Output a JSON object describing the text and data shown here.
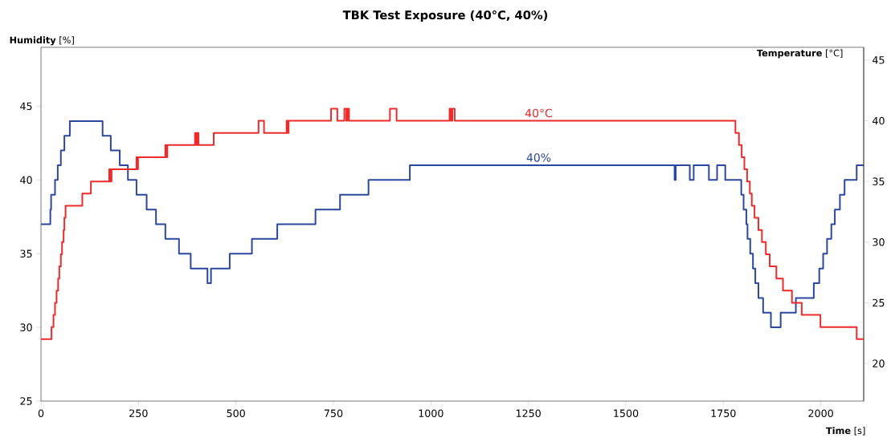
{
  "chart_data": {
    "type": "step",
    "title": "TBK Test Exposure (40°C, 40%)",
    "xlabel": "**Time** [s]",
    "ylabel": "**Humidity** [%]",
    "y2label": "**Temperature** [°C]",
    "xlim": [
      0,
      2110
    ],
    "xticks": [
      0,
      250,
      500,
      750,
      1000,
      1250,
      1500,
      1750,
      2000
    ],
    "ylim": [
      25,
      49
    ],
    "yticks": [
      25,
      30,
      35,
      40,
      45
    ],
    "y2lim": [
      16.9,
      46.05
    ],
    "y2ticks": [
      20,
      25,
      30,
      35,
      40,
      45
    ],
    "series": [
      {
        "name": "40°C",
        "color": "#ee2a2a",
        "axis": "y2",
        "x": [
          0,
          27,
          32,
          36,
          40,
          44,
          47,
          51,
          54,
          58,
          60,
          63,
          106,
          128,
          175,
          178,
          181,
          245,
          247,
          249,
          319,
          321,
          324,
          395,
          398,
          401,
          404,
          443,
          558,
          572,
          630,
          632,
          635,
          744,
          760,
          778,
          783,
          786,
          790,
          895,
          912,
          1048,
          1052,
          1055,
          1061,
          1781,
          1790,
          1797,
          1804,
          1811,
          1818,
          1823,
          1830,
          1840,
          1849,
          1859,
          1869,
          1886,
          1903,
          1926,
          1951,
          1999,
          2092,
          2110
        ],
        "values": [
          22,
          23,
          24,
          25,
          26,
          27,
          28,
          29,
          30,
          31,
          32,
          33,
          34,
          35,
          36,
          35,
          36,
          37,
          36,
          37,
          38,
          37,
          38,
          39,
          38,
          39,
          38,
          39,
          40,
          39,
          40,
          39,
          40,
          41,
          40,
          41,
          40,
          41,
          40,
          41,
          40,
          41,
          40,
          41,
          40,
          39,
          38,
          37,
          36,
          35,
          34,
          33,
          32,
          31,
          30,
          29,
          28,
          27,
          26,
          25,
          24,
          23,
          22,
          22
        ]
      },
      {
        "name": "40%",
        "color": "#2b47a0",
        "x": [
          0,
          24,
          26,
          36,
          43,
          51,
          60,
          74,
          158,
          179,
          202,
          223,
          245,
          271,
          295,
          319,
          354,
          384,
          427,
          436,
          484,
          541,
          606,
          704,
          767,
          840,
          946,
          1625,
          1628,
          1664,
          1674,
          1713,
          1734,
          1755,
          1796,
          1802,
          1809,
          1812,
          1819,
          1826,
          1832,
          1840,
          1852,
          1872,
          1897,
          1936,
          1982,
          1996,
          2006,
          2016,
          2027,
          2036,
          2049,
          2061,
          2092,
          2110
        ],
        "values": [
          37,
          38,
          39,
          40,
          41,
          42,
          43,
          44,
          43,
          42,
          41,
          40,
          39,
          38,
          37,
          36,
          35,
          34,
          33,
          34,
          35,
          36,
          37,
          38,
          39,
          40,
          41,
          40,
          41,
          40,
          41,
          40,
          41,
          40,
          39,
          38,
          37,
          36,
          35,
          34,
          33,
          32,
          31,
          30,
          31,
          32,
          33,
          34,
          35,
          36,
          37,
          38,
          39,
          40,
          41,
          41
        ]
      }
    ]
  }
}
